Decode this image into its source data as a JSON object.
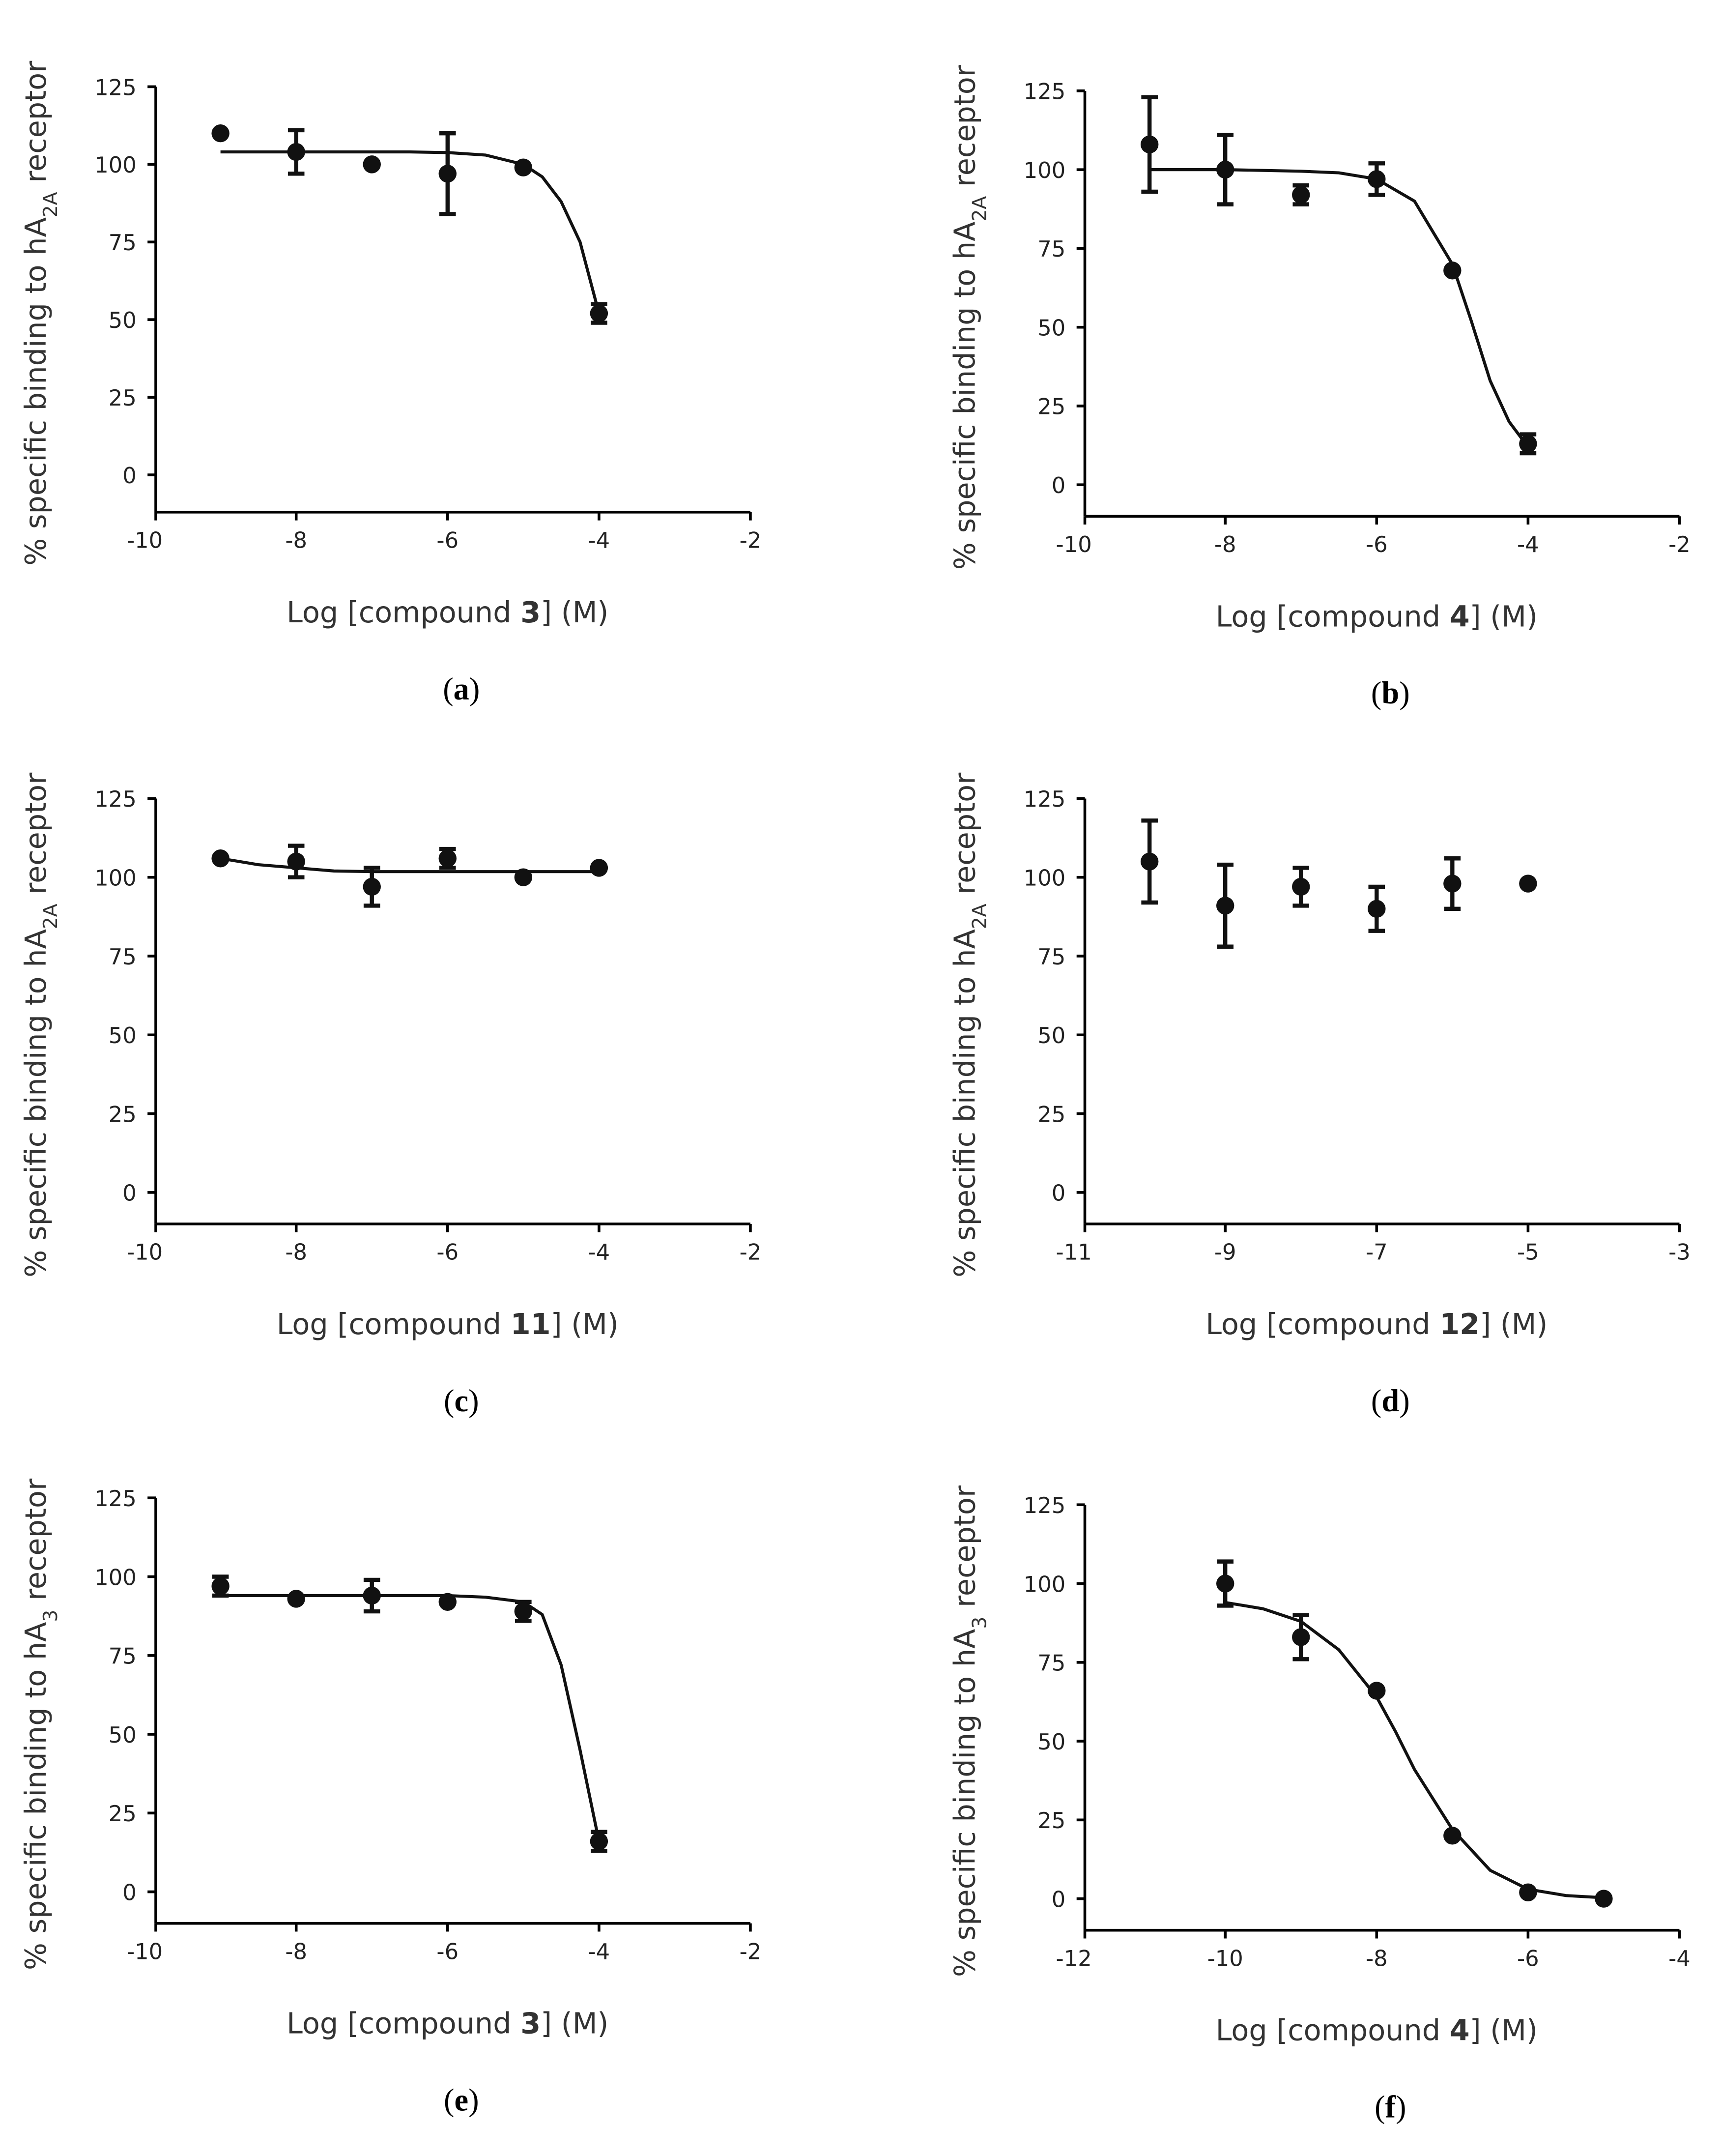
{
  "chart_data": [
    {
      "type": "scatter",
      "panel_label": [
        "(",
        "a",
        ")"
      ],
      "y_label": [
        "% specific binding to hA",
        "2A",
        " receptor"
      ],
      "x_label": [
        "Log [compound ",
        "3",
        "] (M)"
      ],
      "x": [
        -9,
        -8,
        -7,
        -6,
        -5,
        -4
      ],
      "values": [
        110,
        104,
        100,
        97,
        99,
        52
      ],
      "errors": [
        null,
        7,
        null,
        13,
        null,
        3
      ],
      "fit_x": [
        -9,
        -8,
        -7,
        -6.5,
        -6,
        -5.5,
        -5,
        -4.75,
        -4.5,
        -4.25,
        -4
      ],
      "fit_values": [
        104,
        104,
        104,
        104,
        103.8,
        103,
        100,
        96,
        88,
        75,
        52
      ],
      "xlim": [
        -10,
        -2
      ],
      "ylim": [
        -12,
        125
      ],
      "xticks": [
        -10,
        -8,
        -6,
        -4,
        -2
      ],
      "yticks": [
        0,
        25,
        50,
        75,
        100,
        125
      ],
      "color": "#111111"
    },
    {
      "type": "scatter",
      "panel_label": [
        "(",
        "b",
        ")"
      ],
      "y_label": [
        "% specific binding to hA",
        "2A",
        " receptor"
      ],
      "x_label": [
        "Log [compound ",
        "4",
        "] (M)"
      ],
      "x": [
        -9,
        -8,
        -7,
        -6,
        -5,
        -4
      ],
      "values": [
        108,
        100,
        92,
        97,
        68,
        13
      ],
      "errors": [
        15,
        11,
        3,
        5,
        null,
        3
      ],
      "fit_x": [
        -9,
        -8,
        -7,
        -6.5,
        -6,
        -5.5,
        -5,
        -4.75,
        -4.5,
        -4.25,
        -4
      ],
      "fit_values": [
        100,
        100,
        99.5,
        99,
        97,
        90,
        70,
        52,
        33,
        20,
        12
      ],
      "xlim": [
        -10,
        -2
      ],
      "ylim": [
        -10,
        125
      ],
      "xticks": [
        -10,
        -8,
        -6,
        -4,
        -2
      ],
      "yticks": [
        0,
        25,
        50,
        75,
        100,
        125
      ],
      "color": "#111111"
    },
    {
      "type": "scatter",
      "panel_label": [
        "(",
        "c",
        ")"
      ],
      "y_label": [
        "% specific binding to hA",
        "2A",
        " receptor"
      ],
      "x_label": [
        "Log [compound ",
        "11",
        "] (M)"
      ],
      "x": [
        -9,
        -8,
        -7,
        -6,
        -5,
        -4
      ],
      "values": [
        106,
        105,
        97,
        106,
        100,
        103
      ],
      "errors": [
        null,
        5,
        6,
        3,
        null,
        null
      ],
      "fit_x": [
        -9,
        -8.5,
        -8,
        -7.5,
        -7,
        -6,
        -5,
        -4
      ],
      "fit_values": [
        106,
        104,
        103,
        102,
        101.8,
        101.8,
        101.8,
        101.8
      ],
      "xlim": [
        -10,
        -2
      ],
      "ylim": [
        -10,
        125
      ],
      "xticks": [
        -10,
        -8,
        -6,
        -4,
        -2
      ],
      "yticks": [
        0,
        25,
        50,
        75,
        100,
        125
      ],
      "color": "#111111"
    },
    {
      "type": "scatter",
      "panel_label": [
        "(",
        "d",
        ")"
      ],
      "y_label": [
        "% specific binding to hA",
        "2A",
        " receptor"
      ],
      "x_label": [
        "Log [compound ",
        "12",
        "] (M)"
      ],
      "x": [
        -10,
        -9,
        -8,
        -7,
        -6,
        -5
      ],
      "values": [
        105,
        91,
        97,
        90,
        98,
        98
      ],
      "errors": [
        13,
        13,
        6,
        7,
        8,
        null
      ],
      "xlim": [
        -11,
        -3
      ],
      "ylim": [
        -10,
        125
      ],
      "xticks": [
        -11,
        -9,
        -7,
        -5,
        -3
      ],
      "yticks": [
        0,
        25,
        50,
        75,
        100,
        125
      ],
      "color": "#111111"
    },
    {
      "type": "scatter",
      "panel_label": [
        "(",
        "e",
        ")"
      ],
      "y_label": [
        "% specific binding to hA",
        "3",
        " receptor"
      ],
      "x_label": [
        "Log [compound ",
        "3",
        "] (M)"
      ],
      "x": [
        -9,
        -8,
        -7,
        -6,
        -5,
        -4
      ],
      "values": [
        97,
        93,
        94,
        92,
        89,
        16
      ],
      "errors": [
        3,
        null,
        5,
        null,
        3,
        3
      ],
      "fit_x": [
        -9,
        -8,
        -7,
        -6,
        -5.5,
        -5,
        -4.75,
        -4.5,
        -4.25,
        -4
      ],
      "fit_values": [
        94,
        94,
        94,
        94,
        93.5,
        92,
        88,
        72,
        45,
        16
      ],
      "xlim": [
        -10,
        -2
      ],
      "ylim": [
        -10,
        125
      ],
      "xticks": [
        -10,
        -8,
        -6,
        -4,
        -2
      ],
      "yticks": [
        0,
        25,
        50,
        75,
        100,
        125
      ],
      "color": "#111111"
    },
    {
      "type": "scatter",
      "panel_label": [
        "(",
        "f",
        ")"
      ],
      "y_label": [
        "% specific binding to hA",
        "3",
        " receptor"
      ],
      "x_label": [
        "Log [compound ",
        "4",
        "] (M)"
      ],
      "x": [
        -10,
        -9,
        -8,
        -7,
        -6,
        -5
      ],
      "values": [
        100,
        83,
        66,
        20,
        2,
        0
      ],
      "errors": [
        7,
        7,
        null,
        null,
        null,
        null
      ],
      "fit_x": [
        -10,
        -9.5,
        -9,
        -8.5,
        -8,
        -7.75,
        -7.5,
        -7,
        -6.5,
        -6,
        -5.5,
        -5
      ],
      "fit_values": [
        94,
        92,
        88,
        79,
        64,
        53,
        41,
        22,
        9,
        3,
        1,
        0.3
      ],
      "xlim": [
        -12,
        -4
      ],
      "ylim": [
        -10,
        125
      ],
      "xticks": [
        -12,
        -10,
        -8,
        -6,
        -4
      ],
      "yticks": [
        0,
        25,
        50,
        75,
        100,
        125
      ],
      "color": "#111111"
    }
  ]
}
